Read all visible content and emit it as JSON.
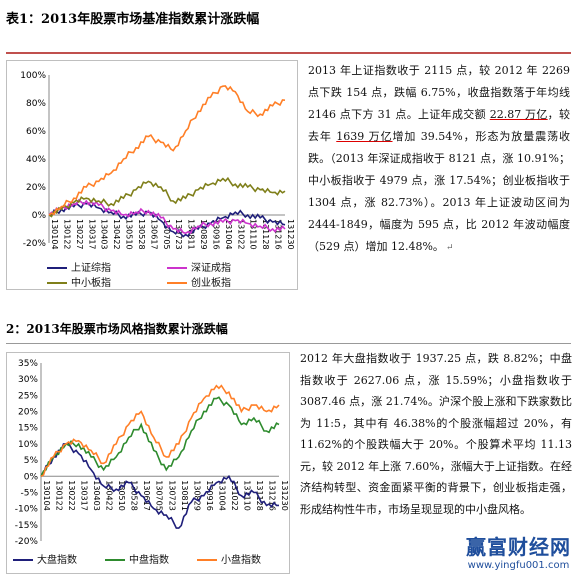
{
  "section1": {
    "title": "表1：2013年股票市场基准指数累计涨跌幅",
    "paragraph": [
      {
        "t": "2013 年上证指数收于 2115 点，较 2012 年 2269 点下跌 154 点，跌幅 6.75%，收盘指数落于年均线 2146 点下方 31 点。上证年成交额 "
      },
      {
        "t": "22.87 万亿",
        "u": true
      },
      {
        "t": "，较去年 "
      },
      {
        "t": "1639 万亿",
        "u": true
      },
      {
        "t": "增加 39.54%，形态为放量震荡收跌。（2013 年深证成指收于 8121 点，涨 10.91%；中小板指收于 4979 点，涨 17.54%；创业板指收于 1304 点，涨 82.73%）。2013 年上证波动区间为 2444-1849，幅度为 595 点，比 2012 年波动幅度（529 点）增加 12.48%。"
      }
    ],
    "return_mark": "↵"
  },
  "section2": {
    "title": "2：2013年股票市场风格指数累计涨跌幅",
    "paragraph": [
      {
        "t": "2012 年大盘指数收于 1937.25 点，跌 8.82%；中盘指数收于 2627.06 点，涨 15.59%；小盘指数收于 3087.46 点，涨 21.74%。沪深个股上涨和下跌家数比为 11:5，其中有 46.38%的个股涨幅超过 20%，有 11.62%的个股跌幅大于 20%。个股算术平均 11.13 元，较 2012 年上涨 7.60%，涨幅大于上证指数。在经济结构转型、资金面紧平衡的背景下，创业板指走强，形成结构性牛市，市场呈现显现的中小盘风格。"
      }
    ]
  },
  "watermark": {
    "name": "赢富财经网",
    "url": "www.yingfu001.com"
  },
  "chart_data": [
    {
      "type": "line",
      "title": "",
      "ylim": [
        -0.2,
        1.0
      ],
      "y_ticks": [
        "100%",
        "80%",
        "60%",
        "40%",
        "20%",
        "0%",
        "-20%"
      ],
      "x_ticks": [
        "130104",
        "130122",
        "130227",
        "130317",
        "130403",
        "130422",
        "130510",
        "130528",
        "130617",
        "130705",
        "130723",
        "130811",
        "130829",
        "130916",
        "131004",
        "131022",
        "131110",
        "131128",
        "131216",
        "131230"
      ],
      "series": [
        {
          "name": "上证综指",
          "color": "#1f1f7a",
          "values": [
            0.0,
            0.04,
            0.06,
            0.08,
            0.05,
            0.02,
            -0.01,
            0.0,
            0.02,
            -0.04,
            -0.12,
            -0.14,
            -0.1,
            -0.06,
            -0.02,
            0.02,
            0.0,
            -0.02,
            -0.05,
            -0.07
          ]
        },
        {
          "name": "深证成指",
          "color": "#cc33cc",
          "values": [
            0.0,
            0.05,
            0.08,
            0.1,
            0.07,
            0.03,
            0.0,
            0.02,
            0.03,
            -0.02,
            -0.1,
            -0.13,
            -0.08,
            -0.06,
            -0.05,
            -0.04,
            -0.06,
            -0.08,
            -0.1,
            -0.1
          ]
        },
        {
          "name": "中小板指",
          "color": "#7f7f1a",
          "values": [
            0.0,
            0.04,
            0.09,
            0.12,
            0.1,
            0.08,
            0.12,
            0.18,
            0.24,
            0.2,
            0.1,
            0.12,
            0.18,
            0.22,
            0.26,
            0.22,
            0.2,
            0.18,
            0.16,
            0.17
          ]
        },
        {
          "name": "创业板指",
          "color": "#ff7f27",
          "values": [
            0.0,
            0.06,
            0.12,
            0.2,
            0.24,
            0.3,
            0.4,
            0.48,
            0.56,
            0.52,
            0.46,
            0.6,
            0.74,
            0.84,
            0.92,
            0.88,
            0.74,
            0.72,
            0.78,
            0.82
          ]
        }
      ]
    },
    {
      "type": "line",
      "title": "",
      "ylim": [
        -0.2,
        0.35
      ],
      "y_ticks": [
        "35%",
        "30%",
        "25%",
        "20%",
        "15%",
        "10%",
        "5%",
        "0%",
        "-5%",
        "-10%",
        "-15%",
        "-20%"
      ],
      "x_ticks": [
        "130104",
        "130122",
        "130222",
        "130317",
        "130403",
        "130422",
        "130510",
        "130528",
        "130617",
        "130705",
        "130723",
        "130811",
        "130829",
        "130916",
        "131004",
        "131022",
        "131110",
        "131128",
        "131216",
        "131230"
      ],
      "series": [
        {
          "name": "大盘指数",
          "color": "#1f1f7a",
          "values": [
            0.0,
            0.06,
            0.1,
            0.07,
            0.02,
            -0.03,
            -0.04,
            -0.02,
            -0.06,
            -0.1,
            -0.12,
            -0.16,
            -0.08,
            -0.06,
            -0.02,
            0.0,
            -0.06,
            -0.05,
            -0.09,
            -0.09
          ]
        },
        {
          "name": "中盘指数",
          "color": "#2e8b2e",
          "values": [
            0.0,
            0.06,
            0.1,
            0.1,
            0.06,
            0.02,
            0.06,
            0.12,
            0.16,
            0.08,
            0.02,
            0.06,
            0.14,
            0.2,
            0.24,
            0.22,
            0.16,
            0.18,
            0.14,
            0.16
          ]
        },
        {
          "name": "小盘指数",
          "color": "#ff7f27",
          "values": [
            0.0,
            0.06,
            0.1,
            0.11,
            0.08,
            0.04,
            0.1,
            0.16,
            0.2,
            0.12,
            0.06,
            0.1,
            0.18,
            0.24,
            0.28,
            0.26,
            0.2,
            0.22,
            0.2,
            0.22
          ]
        }
      ]
    }
  ]
}
